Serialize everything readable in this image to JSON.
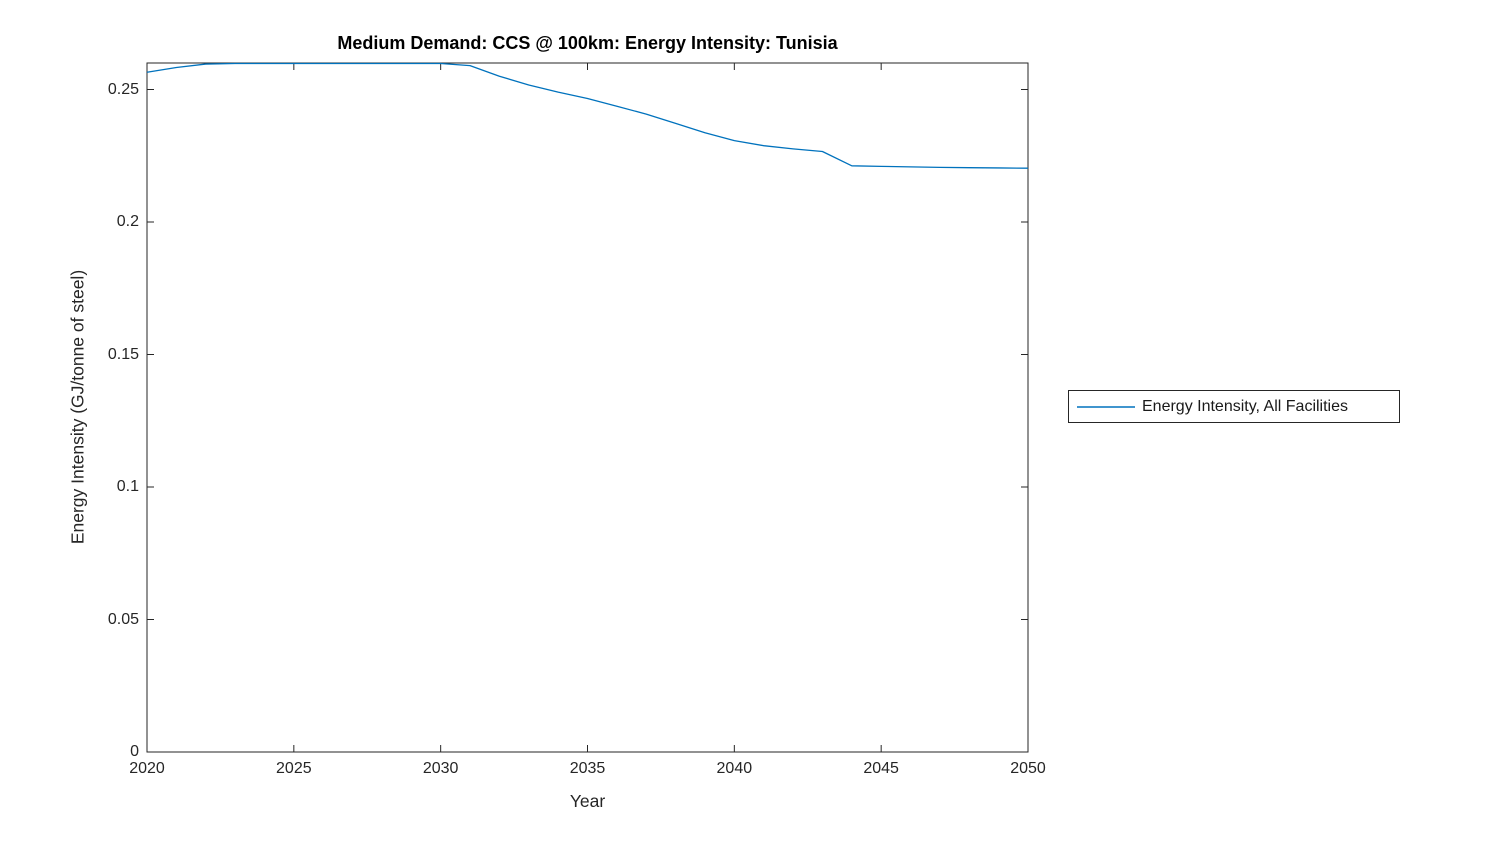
{
  "colors": {
    "axis": "#262626",
    "background": "#ffffff",
    "title_text": "#000000",
    "line": "#0072BD"
  },
  "chart_data": {
    "type": "line",
    "title": "Medium Demand: CCS @ 100km: Energy Intensity: Tunisia",
    "xlabel": "Year",
    "ylabel": "Energy Intensity (GJ/tonne of steel)",
    "xlim": [
      2020,
      2050
    ],
    "ylim": [
      0,
      0.26
    ],
    "x_ticks": [
      2020,
      2025,
      2030,
      2035,
      2040,
      2045,
      2050
    ],
    "x_tick_labels": [
      "2020",
      "2025",
      "2030",
      "2035",
      "2040",
      "2045",
      "2050"
    ],
    "y_ticks": [
      0,
      0.05,
      0.1,
      0.15,
      0.2,
      0.25
    ],
    "y_tick_labels": [
      "0",
      "0.05",
      "0.1",
      "0.15",
      "0.2",
      "0.25"
    ],
    "grid": false,
    "box": true,
    "legend_position": "outside-right",
    "series": [
      {
        "name": "Energy Intensity, All Facilities",
        "color": "#0072BD",
        "x": [
          2020,
          2021,
          2022,
          2023,
          2024,
          2025,
          2026,
          2027,
          2028,
          2029,
          2030,
          2031,
          2032,
          2033,
          2034,
          2035,
          2036,
          2037,
          2038,
          2039,
          2040,
          2041,
          2042,
          2043,
          2044,
          2045,
          2046,
          2047,
          2048,
          2049,
          2050
        ],
        "y": [
          0.2565,
          0.2583,
          0.2596,
          0.2598,
          0.2598,
          0.2598,
          0.2598,
          0.2598,
          0.2598,
          0.2598,
          0.2598,
          0.259,
          0.255,
          0.2517,
          0.249,
          0.2466,
          0.2437,
          0.2407,
          0.2372,
          0.2337,
          0.2307,
          0.2288,
          0.2276,
          0.2266,
          0.2212,
          0.221,
          0.2208,
          0.2206,
          0.2205,
          0.2204,
          0.2203
        ]
      }
    ]
  }
}
